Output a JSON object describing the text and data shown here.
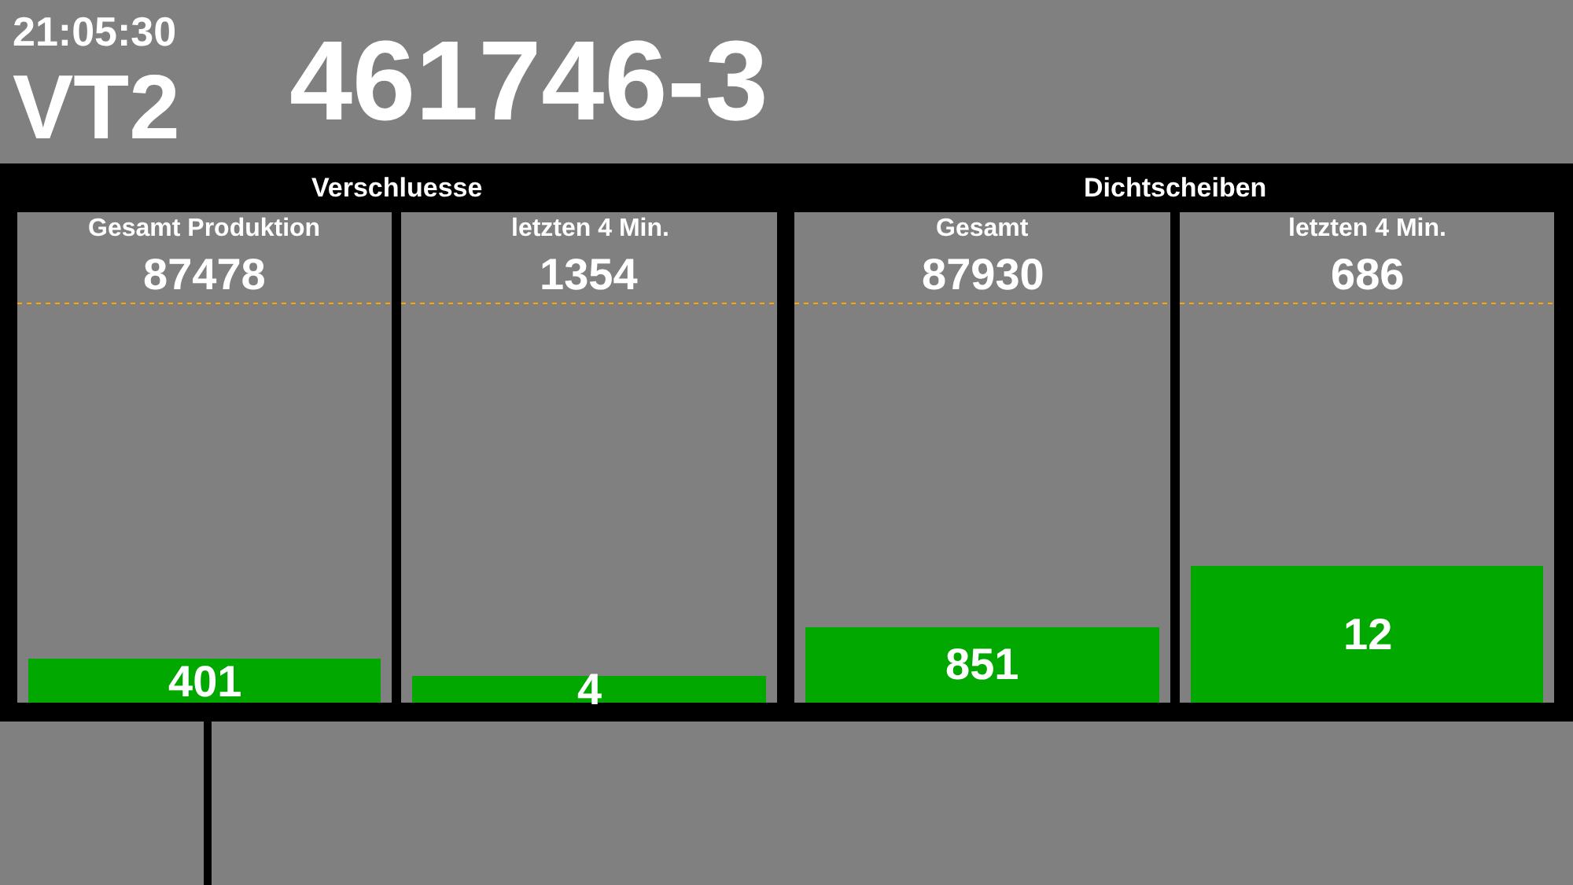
{
  "chart_data": [
    {
      "type": "bar",
      "title": "Gesamt Produktion",
      "subtitle": "87478",
      "categories": [
        null
      ],
      "values": [
        401
      ],
      "data_labels": true,
      "ylim": [
        0,
        3640
      ],
      "color": "#00a800",
      "tick_labels": false,
      "annotations": [
        "21:05:30",
        "VT2",
        "461746-3",
        "Verschluesse"
      ]
    },
    {
      "type": "bar",
      "title": "letzten 4 Min.",
      "subtitle": "1354",
      "categories": [
        null
      ],
      "values": [
        4
      ],
      "data_labels": true,
      "ylim": [
        0,
        60
      ],
      "color": "#00a800",
      "tick_labels": false
    },
    {
      "type": "bar",
      "title": "Gesamt",
      "subtitle": "87930",
      "categories": [
        null
      ],
      "values": [
        851
      ],
      "data_labels": true,
      "ylim": [
        0,
        4500
      ],
      "color": "#00a800",
      "tick_labels": false,
      "annotations": [
        "Dichtscheiben"
      ]
    },
    {
      "type": "bar",
      "title": "letzten 4 Min.",
      "subtitle": "686",
      "categories": [
        null
      ],
      "values": [
        12
      ],
      "data_labels": true,
      "ylim": [
        0,
        35
      ],
      "color": "#00a800",
      "tick_labels": false
    }
  ]
}
